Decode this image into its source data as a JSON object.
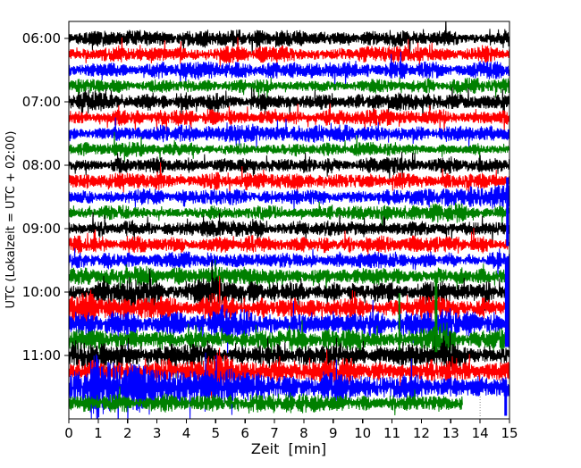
{
  "figure": {
    "background": "#ffffff",
    "frame_color": "#000000"
  },
  "chart_data": {
    "type": "line",
    "subtype": "seismogram-dayplot",
    "title": "",
    "xlabel": "Zeit  [min]",
    "ylabel": "UTC (Lokalzeit = UTC + 02:00)",
    "xlim": [
      0,
      15
    ],
    "xticks": [
      0,
      1,
      2,
      3,
      4,
      5,
      6,
      7,
      8,
      9,
      10,
      11,
      12,
      13,
      14,
      15
    ],
    "ytick_labels": [
      "06:00",
      "07:00",
      "08:00",
      "09:00",
      "10:00",
      "11:00"
    ],
    "minutes_per_trace": 15,
    "grid": false,
    "legend": "none",
    "colors_cycle": [
      "#000000",
      "#ff0000",
      "#0000ff",
      "#008000"
    ],
    "traces": [
      {
        "time": "06:00",
        "color": "#000000",
        "base_amp": 8
      },
      {
        "time": "06:15",
        "color": "#ff0000",
        "base_amp": 8
      },
      {
        "time": "06:30",
        "color": "#0000ff",
        "base_amp": 8
      },
      {
        "time": "06:45",
        "color": "#008000",
        "base_amp": 7
      },
      {
        "time": "07:00",
        "color": "#000000",
        "base_amp": 8,
        "events": [
          {
            "type": "burst",
            "x0": 0,
            "x1": 1.3,
            "amp": 4
          }
        ]
      },
      {
        "time": "07:15",
        "color": "#ff0000",
        "base_amp": 8
      },
      {
        "time": "07:30",
        "color": "#0000ff",
        "base_amp": 8
      },
      {
        "time": "07:45",
        "color": "#008000",
        "base_amp": 6.5
      },
      {
        "time": "08:00",
        "color": "#000000",
        "base_amp": 7.5
      },
      {
        "time": "08:15",
        "color": "#ff0000",
        "base_amp": 8
      },
      {
        "time": "08:30",
        "color": "#0000ff",
        "base_amp": 7,
        "events": [
          {
            "type": "ramp",
            "x0": 10.3,
            "x1": 15,
            "amp": 6
          }
        ],
        "spikes": [
          {
            "x": 14.93,
            "up": 22,
            "down": 55,
            "w": 3
          }
        ]
      },
      {
        "time": "08:45",
        "color": "#008000",
        "base_amp": 7,
        "events": [
          {
            "type": "burst",
            "x0": 12.2,
            "x1": 13.6,
            "amp": 5
          }
        ]
      },
      {
        "time": "09:00",
        "color": "#000000",
        "base_amp": 7.5
      },
      {
        "time": "09:15",
        "color": "#ff0000",
        "base_amp": 8
      },
      {
        "time": "09:30",
        "color": "#0000ff",
        "base_amp": 8
      },
      {
        "time": "09:45",
        "color": "#008000",
        "base_amp": 8,
        "events": [
          {
            "type": "burst",
            "x0": 1.8,
            "x1": 3.2,
            "amp": 4
          }
        ]
      },
      {
        "time": "10:00",
        "color": "#000000",
        "base_amp": 10,
        "events": [
          {
            "type": "burst",
            "x0": 1.3,
            "x1": 3.2,
            "amp": 6
          },
          {
            "type": "burst",
            "x0": 4.2,
            "x1": 5.4,
            "amp": 5
          }
        ]
      },
      {
        "time": "10:15",
        "color": "#ff0000",
        "base_amp": 10,
        "events": [
          {
            "type": "burst",
            "x0": 0,
            "x1": 1,
            "amp": 5
          },
          {
            "type": "burst",
            "x0": 4.4,
            "x1": 5.4,
            "amp": 9
          },
          {
            "type": "burst",
            "x0": 11.5,
            "x1": 12.5,
            "amp": 4
          }
        ]
      },
      {
        "time": "10:30",
        "color": "#0000ff",
        "base_amp": 11,
        "events": [
          {
            "type": "burst",
            "x0": 4.4,
            "x1": 6.2,
            "amp": 7
          },
          {
            "type": "burst",
            "x0": 12,
            "x1": 13.2,
            "amp": 5
          }
        ],
        "spikes": [
          {
            "x": 14.92,
            "up": 70,
            "down": 26,
            "w": 5
          }
        ]
      },
      {
        "time": "10:45",
        "color": "#008000",
        "base_amp": 10,
        "events": [
          {
            "type": "burst",
            "x0": 11.9,
            "x1": 13.2,
            "amp": 7
          }
        ],
        "spikes": [
          {
            "x": 11.25,
            "up": 52,
            "down": 12,
            "w": 2
          },
          {
            "x": 12.5,
            "up": 72,
            "down": 14,
            "w": 3
          }
        ]
      },
      {
        "time": "11:00",
        "color": "#000000",
        "base_amp": 11,
        "events": [
          {
            "type": "burst",
            "x0": 0,
            "x1": 0.9,
            "amp": 6
          }
        ]
      },
      {
        "time": "11:15",
        "color": "#ff0000",
        "base_amp": 11,
        "events": [
          {
            "type": "burst",
            "x0": 4.5,
            "x1": 5.8,
            "amp": 9
          }
        ]
      },
      {
        "time": "11:30",
        "color": "#0000ff",
        "base_amp": 11,
        "events": [
          {
            "type": "burst",
            "x0": 0,
            "x1": 0.72,
            "amp": 10
          },
          {
            "type": "decay",
            "x0": 0.72,
            "amp": 26,
            "decay": 3.5
          }
        ],
        "spikes": [
          {
            "x": 14.87,
            "up": 8,
            "down": 32,
            "w": 3
          }
        ]
      },
      {
        "time": "11:45",
        "color": "#008000",
        "base_amp": 9,
        "end_min": 13.4
      }
    ],
    "decorations": {
      "dotted_vline": {
        "x_min": 14,
        "color": "#888888"
      }
    }
  }
}
